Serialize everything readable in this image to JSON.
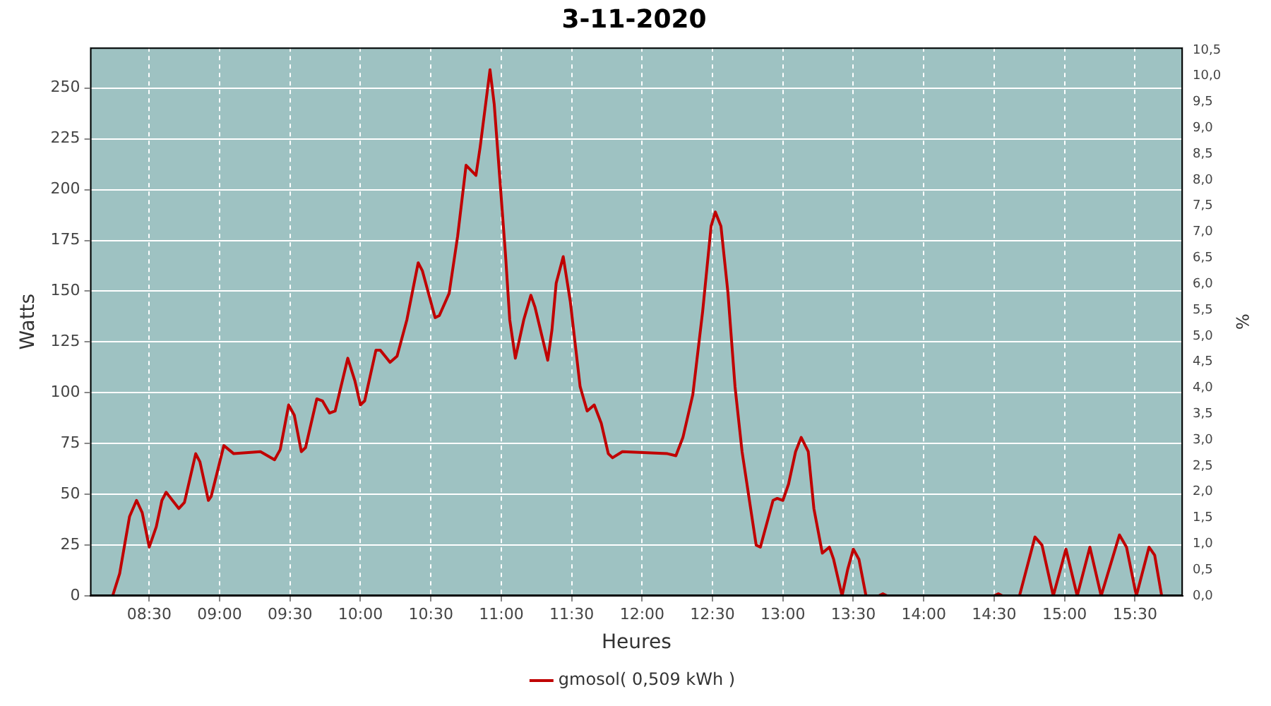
{
  "chart_data": {
    "type": "line",
    "title": "3-11-2020",
    "xlabel": "Heures",
    "ylabel": "Watts",
    "y2label": "%",
    "xlim": [
      8.08,
      15.84
    ],
    "xticks": [
      {
        "value": 8.5,
        "label": "08:30"
      },
      {
        "value": 9,
        "label": "09:00"
      },
      {
        "value": 9.5,
        "label": "09:30"
      },
      {
        "value": 10,
        "label": "10:00"
      },
      {
        "value": 10.5,
        "label": "10:30"
      },
      {
        "value": 11,
        "label": "11:00"
      },
      {
        "value": 11.5,
        "label": "11:30"
      },
      {
        "value": 12,
        "label": "12:00"
      },
      {
        "value": 12.5,
        "label": "12:30"
      },
      {
        "value": 13,
        "label": "13:00"
      },
      {
        "value": 13.5,
        "label": "13:30"
      },
      {
        "value": 14,
        "label": "14:00"
      },
      {
        "value": 14.5,
        "label": "14:30"
      },
      {
        "value": 15,
        "label": "15:00"
      },
      {
        "value": 15.5,
        "label": "15:30"
      }
    ],
    "ylim": [
      0,
      270
    ],
    "yticks": [
      0,
      25,
      50,
      75,
      100,
      125,
      150,
      175,
      200,
      225,
      250
    ],
    "y2lim": [
      0,
      10.55
    ],
    "y2ticks": [
      {
        "value": 0,
        "label": "0,0"
      },
      {
        "value": 0.5,
        "label": "0,5"
      },
      {
        "value": 1,
        "label": "1,0"
      },
      {
        "value": 1.5,
        "label": "1,5"
      },
      {
        "value": 2,
        "label": "2,0"
      },
      {
        "value": 2.5,
        "label": "2,5"
      },
      {
        "value": 3,
        "label": "3,0"
      },
      {
        "value": 3.5,
        "label": "3,5"
      },
      {
        "value": 4,
        "label": "4,0"
      },
      {
        "value": 4.5,
        "label": "4,5"
      },
      {
        "value": 5,
        "label": "5,0"
      },
      {
        "value": 5.5,
        "label": "5,5"
      },
      {
        "value": 6,
        "label": "6,0"
      },
      {
        "value": 6.5,
        "label": "6,5"
      },
      {
        "value": 7,
        "label": "7,0"
      },
      {
        "value": 7.5,
        "label": "7,5"
      },
      {
        "value": 8,
        "label": "8,0"
      },
      {
        "value": 8.5,
        "label": "8,5"
      },
      {
        "value": 9,
        "label": "9,0"
      },
      {
        "value": 9.5,
        "label": "9,5"
      },
      {
        "value": 10,
        "label": "10,0"
      },
      {
        "value": 10.5,
        "label": "10,5"
      }
    ],
    "grid": true,
    "legend": "bottom",
    "marker": "none",
    "line_style": "solid",
    "series": [
      {
        "name": "gmosol( 0,509 kWh )",
        "color": "#c00000",
        "x": [
          8.24,
          8.29,
          8.36,
          8.41,
          8.45,
          8.5,
          8.55,
          8.59,
          8.62,
          8.71,
          8.75,
          8.83,
          8.86,
          8.92,
          8.94,
          9.03,
          9.1,
          9.29,
          9.39,
          9.43,
          9.49,
          9.53,
          9.58,
          9.61,
          9.69,
          9.73,
          9.78,
          9.82,
          9.91,
          9.96,
          10.0,
          10.03,
          10.11,
          10.14,
          10.21,
          10.26,
          10.33,
          10.41,
          10.44,
          10.53,
          10.56,
          10.63,
          10.69,
          10.75,
          10.82,
          10.85,
          10.92,
          10.95,
          10.99,
          11.03,
          11.06,
          11.1,
          11.16,
          11.21,
          11.24,
          11.33,
          11.36,
          11.39,
          11.44,
          11.49,
          11.56,
          11.61,
          11.66,
          11.71,
          11.76,
          11.79,
          11.86,
          12.18,
          12.24,
          12.29,
          12.36,
          12.43,
          12.49,
          12.52,
          12.56,
          12.61,
          12.66,
          12.71,
          12.76,
          12.81,
          12.84,
          12.93,
          12.96,
          13.0,
          13.04,
          13.09,
          13.13,
          13.18,
          13.22,
          13.28,
          13.33,
          13.36,
          13.42,
          13.46,
          13.5,
          13.54,
          13.59,
          13.68,
          13.71,
          13.74,
          14.5,
          14.53,
          14.56,
          14.68,
          14.79,
          14.84,
          14.92,
          15.01,
          15.09,
          15.18,
          15.26,
          15.39,
          15.44,
          15.51,
          15.6,
          15.64,
          15.69
        ],
        "values": [
          0,
          11,
          39,
          47,
          41,
          24,
          34,
          47,
          51,
          43,
          46,
          70,
          66,
          47,
          49,
          74,
          70,
          71,
          67,
          72,
          94,
          89,
          71,
          73,
          97,
          96,
          90,
          91,
          117,
          106,
          94,
          96,
          121,
          121,
          115,
          118,
          136,
          164,
          160,
          137,
          138,
          149,
          177,
          212,
          207,
          221,
          259,
          242,
          205,
          168,
          136,
          117,
          136,
          148,
          142,
          116,
          131,
          154,
          167,
          145,
          103,
          91,
          94,
          85,
          70,
          68,
          71,
          70,
          69,
          78,
          99,
          140,
          182,
          189,
          182,
          149,
          103,
          71,
          48,
          25,
          24,
          47,
          48,
          47,
          55,
          71,
          78,
          71,
          43,
          21,
          24,
          18,
          0,
          13,
          23,
          18,
          0,
          0,
          1,
          0,
          0,
          1,
          0,
          0,
          29,
          25,
          0,
          23,
          0,
          24,
          0,
          30,
          24,
          0,
          24,
          20,
          0
        ]
      }
    ]
  }
}
